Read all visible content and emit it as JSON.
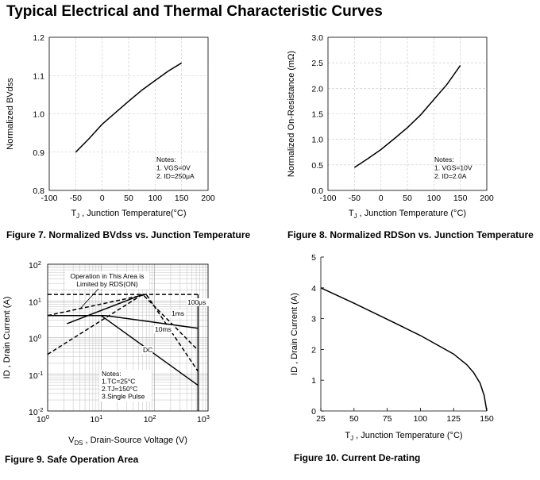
{
  "page": {
    "title": "Typical Electrical and Thermal Characteristic Curves"
  },
  "chart_data": [
    {
      "id": "fig7",
      "type": "line",
      "caption": "Figure 7. Normalized BVdss vs. Junction Temperature",
      "ylabel": "Normalized BVdss",
      "xlabel": "T",
      "xlabel_sub": "J",
      "xlabel_rest": " , Junction Temperature(°C)",
      "xlim": [
        -100,
        200
      ],
      "ylim": [
        0.8,
        1.2
      ],
      "xticks": [
        -100,
        -50,
        0,
        50,
        100,
        150,
        200
      ],
      "yticks": [
        0.8,
        0.9,
        1.0,
        1.1,
        1.2
      ],
      "ytick_labels": [
        "0.8",
        "0.9",
        "1.0",
        "1.1",
        "1.2"
      ],
      "notes": [
        "Notes:",
        "1. VGS=0V",
        "2. ID=250μA"
      ],
      "series": [
        {
          "name": "BVdss",
          "x": [
            -50,
            -25,
            0,
            25,
            50,
            75,
            100,
            125,
            150
          ],
          "y": [
            0.9,
            0.935,
            0.973,
            1.003,
            1.033,
            1.062,
            1.087,
            1.112,
            1.133
          ]
        }
      ]
    },
    {
      "id": "fig8",
      "type": "line",
      "caption": "Figure 8. Normalized RDSon vs. Junction Temperature",
      "ylabel": "Normalized On-Resistance (mΩ)",
      "xlabel": "T",
      "xlabel_sub": "J",
      "xlabel_rest": " , Junction Temperature (°C)",
      "xlim": [
        -100,
        200
      ],
      "ylim": [
        0,
        3
      ],
      "xticks": [
        -100,
        -50,
        0,
        50,
        100,
        150,
        200
      ],
      "yticks": [
        0,
        0.5,
        1,
        1.5,
        2,
        2.5,
        3
      ],
      "ytick_labels": [
        "0.0",
        "0.5",
        "1.0",
        "1.5",
        "2.0",
        "2.5",
        "3.0"
      ],
      "notes": [
        "Notes:",
        "1. VGS=10V",
        "2. ID=2.0A"
      ],
      "series": [
        {
          "name": "RDSon",
          "x": [
            -50,
            -25,
            0,
            25,
            50,
            75,
            100,
            125,
            150
          ],
          "y": [
            0.45,
            0.62,
            0.8,
            1.01,
            1.23,
            1.48,
            1.78,
            2.08,
            2.45
          ]
        }
      ]
    },
    {
      "id": "fig9",
      "type": "line",
      "caption": "Figure 9. Safe Operation Area",
      "ylabel": "ID , Drain Current (A)",
      "xlabel": "V",
      "xlabel_sub": "DS",
      "xlabel_rest": " , Drain-Source Voltage (V)",
      "xscale": "log",
      "yscale": "log",
      "xlim": [
        1,
        1000
      ],
      "ylim": [
        0.01,
        100
      ],
      "xticks": [
        1,
        10,
        100,
        1000
      ],
      "xtick_exp": [
        "0",
        "1",
        "2",
        "3"
      ],
      "yticks": [
        0.01,
        0.1,
        1,
        10,
        100
      ],
      "ytick_exp": [
        "-2",
        "-1",
        "0",
        "1",
        "2"
      ],
      "annotation": [
        "Operation in This Area is",
        "Limited by RDS(ON)"
      ],
      "notes": [
        "Notes:",
        "1.TC=25°C",
        "2.TJ=150°C",
        "3.Single Pulse"
      ],
      "series": [
        {
          "name": "100μs",
          "label": "100μs",
          "style": "solid",
          "x": [
            1,
            12,
            650
          ],
          "y": [
            4,
            4,
            1.8
          ]
        },
        {
          "name": "1ms",
          "label": "1ms",
          "style": "dashed",
          "x": [
            1,
            60,
            650
          ],
          "y": [
            0.35,
            15,
            0.45
          ]
        },
        {
          "name": "10ms",
          "label": "10ms",
          "style": "dashed",
          "x": [
            1,
            70,
            650
          ],
          "y": [
            4,
            15,
            0.12
          ]
        },
        {
          "name": "DC",
          "label": "DC",
          "style": "solid",
          "x": [
            1,
            10,
            650
          ],
          "y": [
            4,
            4,
            0.05
          ]
        },
        {
          "name": "current-limit",
          "style": "dashed",
          "x": [
            1,
            700
          ],
          "y": [
            15,
            15
          ]
        },
        {
          "name": "voltage-limit",
          "style": "solid",
          "x": [
            650,
            650
          ],
          "y": [
            0.01,
            15
          ]
        },
        {
          "name": "RDS(on) limit",
          "style": "solid",
          "x": [
            2.3,
            60
          ],
          "y": [
            2.4,
            15
          ]
        }
      ]
    },
    {
      "id": "fig10",
      "type": "line",
      "caption": "Figure 10. Current De-rating",
      "ylabel": "ID , Drain Current (A)",
      "xlabel": "T",
      "xlabel_sub": "J",
      "xlabel_rest": " , Junction Temperature (°C)",
      "xlim": [
        25,
        150
      ],
      "ylim": [
        0,
        5
      ],
      "xticks": [
        25,
        50,
        75,
        100,
        125,
        150
      ],
      "yticks": [
        0,
        1,
        2,
        3,
        4,
        5
      ],
      "ytick_labels": [
        "0",
        "1",
        "2",
        "3",
        "4",
        "5"
      ],
      "series": [
        {
          "name": "ID",
          "x": [
            25,
            50,
            75,
            100,
            125,
            135,
            140,
            145,
            148,
            150
          ],
          "y": [
            4.0,
            3.5,
            2.98,
            2.45,
            1.85,
            1.5,
            1.25,
            0.9,
            0.5,
            0.0
          ]
        }
      ]
    }
  ]
}
